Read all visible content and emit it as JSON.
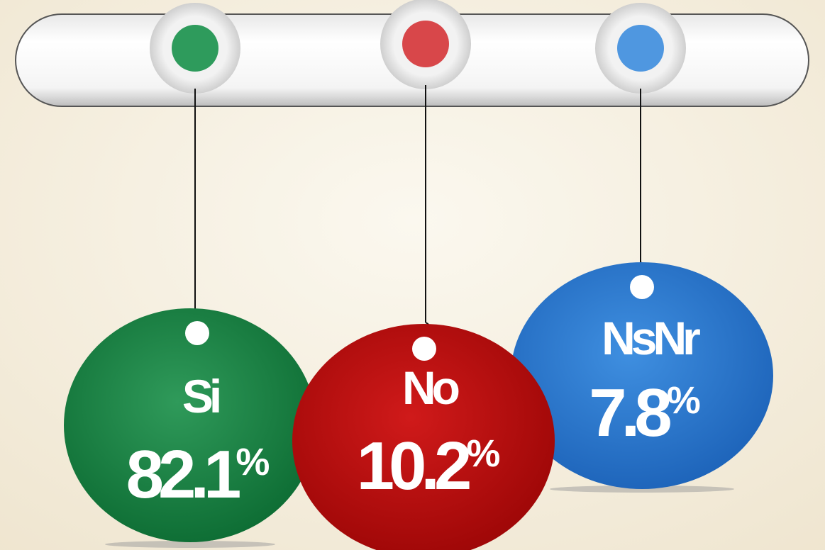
{
  "items": [
    {
      "label": "Si",
      "value": 82.1,
      "unit": "%"
    },
    {
      "label": "No",
      "value": 10.2,
      "unit": "%"
    },
    {
      "label": "NsNr",
      "value": 7.8,
      "unit": "%"
    }
  ]
}
